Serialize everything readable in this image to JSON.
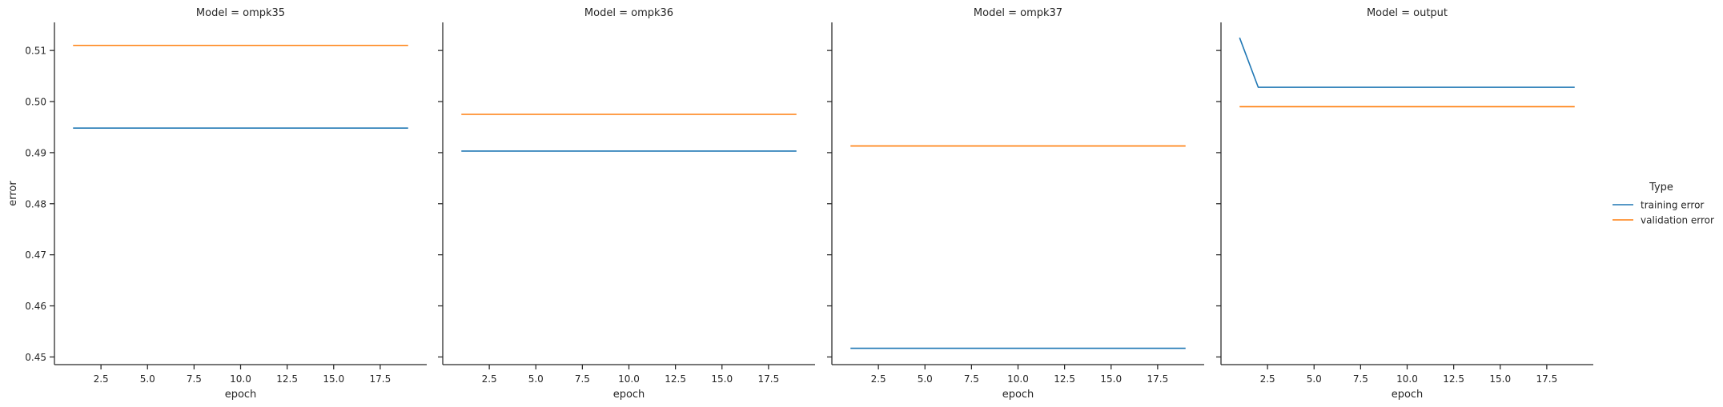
{
  "chart_data": {
    "type": "line",
    "legend": {
      "title": "Type",
      "placement": "right"
    },
    "colors": {
      "training error": "#1f77b4",
      "validation error": "#ff7f0e"
    },
    "xlabel": "epoch",
    "ylabel": "error",
    "xlim": [
      0,
      20
    ],
    "ylim": [
      0.4485,
      0.5155
    ],
    "xticks": [
      "2.5",
      "5.0",
      "7.5",
      "10.0",
      "12.5",
      "15.0",
      "17.5"
    ],
    "yticks": [
      "0.45",
      "0.46",
      "0.47",
      "0.48",
      "0.49",
      "0.50",
      "0.51"
    ],
    "grid": false,
    "x": [
      1,
      2,
      3,
      4,
      5,
      6,
      7,
      8,
      9,
      10,
      11,
      12,
      13,
      14,
      15,
      16,
      17,
      18,
      19
    ],
    "panels": [
      {
        "title": "Model = ompk35",
        "series": [
          {
            "name": "training error",
            "values": [
              0.4948,
              0.4948,
              0.4948,
              0.4948,
              0.4948,
              0.4948,
              0.4948,
              0.4948,
              0.4948,
              0.4948,
              0.4948,
              0.4948,
              0.4948,
              0.4948,
              0.4948,
              0.4948,
              0.4948,
              0.4948,
              0.4948
            ]
          },
          {
            "name": "validation error",
            "values": [
              0.511,
              0.511,
              0.511,
              0.511,
              0.511,
              0.511,
              0.511,
              0.511,
              0.511,
              0.511,
              0.511,
              0.511,
              0.511,
              0.511,
              0.511,
              0.511,
              0.511,
              0.511,
              0.511
            ]
          }
        ]
      },
      {
        "title": "Model = ompk36",
        "series": [
          {
            "name": "training error",
            "values": [
              0.4903,
              0.4903,
              0.4903,
              0.4903,
              0.4903,
              0.4903,
              0.4903,
              0.4903,
              0.4903,
              0.4903,
              0.4903,
              0.4903,
              0.4903,
              0.4903,
              0.4903,
              0.4903,
              0.4903,
              0.4903,
              0.4903
            ]
          },
          {
            "name": "validation error",
            "values": [
              0.4975,
              0.4975,
              0.4975,
              0.4975,
              0.4975,
              0.4975,
              0.4975,
              0.4975,
              0.4975,
              0.4975,
              0.4975,
              0.4975,
              0.4975,
              0.4975,
              0.4975,
              0.4975,
              0.4975,
              0.4975,
              0.4975
            ]
          }
        ]
      },
      {
        "title": "Model = ompk37",
        "series": [
          {
            "name": "training error",
            "values": [
              0.4517,
              0.4517,
              0.4517,
              0.4517,
              0.4517,
              0.4517,
              0.4517,
              0.4517,
              0.4517,
              0.4517,
              0.4517,
              0.4517,
              0.4517,
              0.4517,
              0.4517,
              0.4517,
              0.4517,
              0.4517,
              0.4517
            ]
          },
          {
            "name": "validation error",
            "values": [
              0.4913,
              0.4913,
              0.4913,
              0.4913,
              0.4913,
              0.4913,
              0.4913,
              0.4913,
              0.4913,
              0.4913,
              0.4913,
              0.4913,
              0.4913,
              0.4913,
              0.4913,
              0.4913,
              0.4913,
              0.4913,
              0.4913
            ]
          }
        ]
      },
      {
        "title": "Model = output",
        "series": [
          {
            "name": "training error",
            "values": [
              0.5125,
              0.5028,
              0.5028,
              0.5028,
              0.5028,
              0.5028,
              0.5028,
              0.5028,
              0.5028,
              0.5028,
              0.5028,
              0.5028,
              0.5028,
              0.5028,
              0.5028,
              0.5028,
              0.5028,
              0.5028,
              0.5028
            ]
          },
          {
            "name": "validation error",
            "values": [
              0.499,
              0.499,
              0.499,
              0.499,
              0.499,
              0.499,
              0.499,
              0.499,
              0.499,
              0.499,
              0.499,
              0.499,
              0.499,
              0.499,
              0.499,
              0.499,
              0.499,
              0.499,
              0.499
            ]
          }
        ]
      }
    ]
  }
}
